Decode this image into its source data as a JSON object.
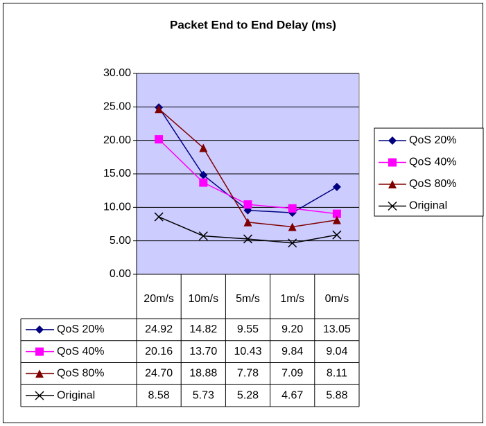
{
  "chart_data": {
    "type": "line",
    "title": "Packet End to End Delay (ms)",
    "categories": [
      "20m/s",
      "10m/s",
      "5m/s",
      "1m/s",
      "0m/s"
    ],
    "series": [
      {
        "name": "QoS 20%",
        "color": "#000080",
        "marker": "diamond",
        "values": [
          24.92,
          14.82,
          9.55,
          9.2,
          13.05
        ],
        "value_labels": [
          "24.92",
          "14.82",
          "9.55",
          "9.20",
          "13.05"
        ]
      },
      {
        "name": "QoS 40%",
        "color": "#ff00ff",
        "marker": "square",
        "values": [
          20.16,
          13.7,
          10.43,
          9.84,
          9.04
        ],
        "value_labels": [
          "20.16",
          "13.70",
          "10.43",
          "9.84",
          "9.04"
        ]
      },
      {
        "name": "QoS 80%",
        "color": "#800000",
        "marker": "triangle",
        "values": [
          24.7,
          18.88,
          7.78,
          7.09,
          8.11
        ],
        "value_labels": [
          "24.70",
          "18.88",
          "7.78",
          "7.09",
          "8.11"
        ]
      },
      {
        "name": "Original",
        "color": "#000000",
        "marker": "x",
        "values": [
          8.58,
          5.73,
          5.28,
          4.67,
          5.88
        ],
        "value_labels": [
          "8.58",
          "5.73",
          "5.28",
          "4.67",
          "5.88"
        ]
      }
    ],
    "ylim": [
      0,
      30
    ],
    "yticks": [
      {
        "value": 0,
        "label": "0.00"
      },
      {
        "value": 5,
        "label": "5.00"
      },
      {
        "value": 10,
        "label": "10.00"
      },
      {
        "value": 15,
        "label": "15.00"
      },
      {
        "value": 20,
        "label": "20.00"
      },
      {
        "value": 25,
        "label": "25.00"
      },
      {
        "value": 30,
        "label": "30.00"
      }
    ],
    "grid": true,
    "legend": "right",
    "plot_background": "#ccccff"
  }
}
